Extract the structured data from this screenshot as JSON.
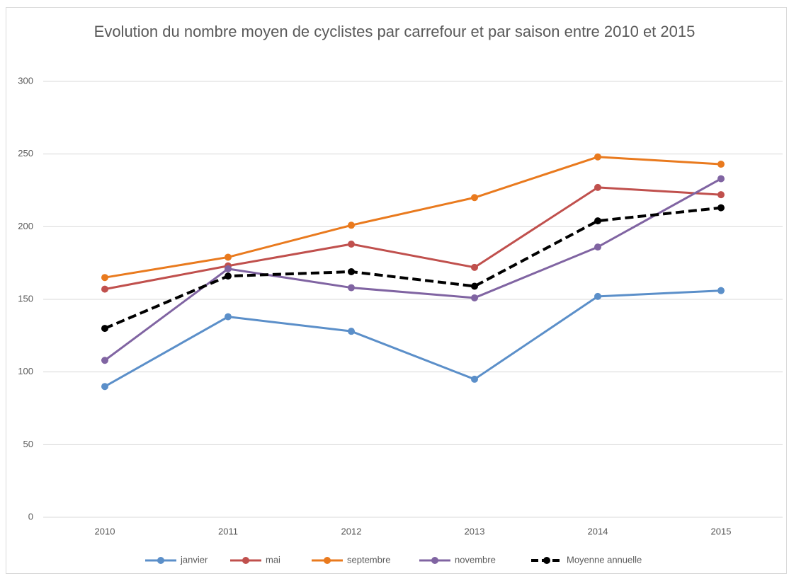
{
  "chart_data": {
    "type": "line",
    "title": "Evolution du nombre moyen de cyclistes par carrefour et par saison entre 2010 et 2015",
    "categories": [
      "2010",
      "2011",
      "2012",
      "2013",
      "2014",
      "2015"
    ],
    "series": [
      {
        "name": "janvier",
        "color": "#5b8fc9",
        "values": [
          90,
          138,
          128,
          95,
          152,
          156
        ]
      },
      {
        "name": "mai",
        "color": "#c0504d",
        "values": [
          157,
          173,
          188,
          172,
          227,
          222
        ]
      },
      {
        "name": "septembre",
        "color": "#e97a1e",
        "values": [
          165,
          179,
          201,
          220,
          248,
          243
        ]
      },
      {
        "name": "novembre",
        "color": "#8064a2",
        "values": [
          108,
          171,
          158,
          151,
          186,
          233
        ]
      },
      {
        "name": "Moyenne annuelle",
        "color": "#000000",
        "dashed": true,
        "values": [
          130,
          166,
          169,
          159,
          204,
          213
        ]
      }
    ],
    "ylim": [
      0,
      300
    ],
    "yticks": [
      0,
      50,
      100,
      150,
      200,
      250,
      300
    ],
    "grid": true,
    "legend": "bottom"
  }
}
